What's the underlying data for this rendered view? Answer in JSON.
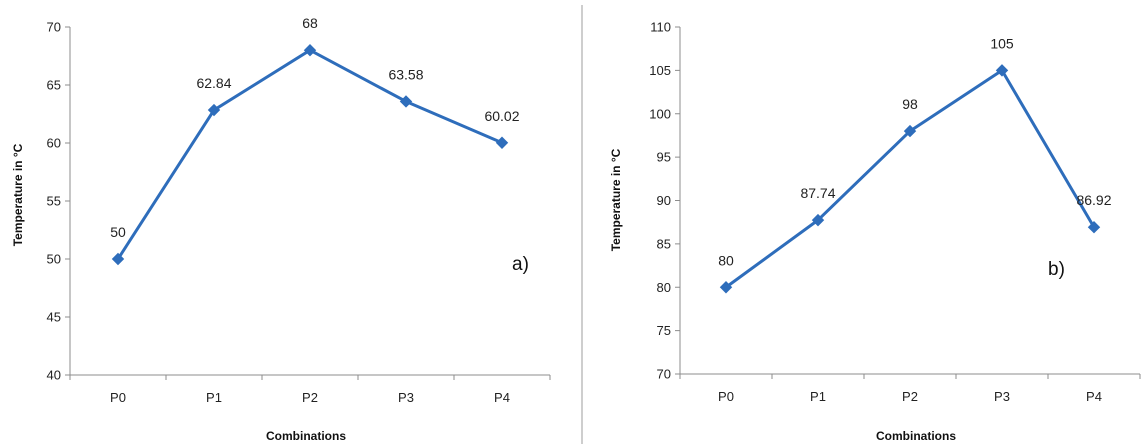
{
  "chart_data": [
    {
      "type": "line",
      "panel_label": "a)",
      "categories": [
        "P0",
        "P1",
        "P2",
        "P3",
        "P4"
      ],
      "values": [
        50,
        62.84,
        68,
        63.58,
        60.02
      ],
      "data_labels": [
        "50",
        "62.84",
        "68",
        "63.58",
        "60.02"
      ],
      "xlabel": "Combinations",
      "ylabel": "Temperature in °C",
      "ylim": [
        40,
        70
      ],
      "yticks": [
        "40",
        "45",
        "50",
        "55",
        "60",
        "65",
        "70"
      ],
      "grid": false,
      "color": "#2e6dbb"
    },
    {
      "type": "line",
      "panel_label": "b)",
      "categories": [
        "P0",
        "P1",
        "P2",
        "P3",
        "P4"
      ],
      "values": [
        80,
        87.74,
        98,
        105,
        86.92
      ],
      "data_labels": [
        "80",
        "87.74",
        "98",
        "105",
        "86.92"
      ],
      "xlabel": "Combinations",
      "ylabel": "Temperature in °C",
      "ylim": [
        70,
        110
      ],
      "yticks": [
        "70",
        "75",
        "80",
        "85",
        "90",
        "95",
        "100",
        "105",
        "110"
      ],
      "grid": false,
      "color": "#2e6dbb"
    }
  ]
}
